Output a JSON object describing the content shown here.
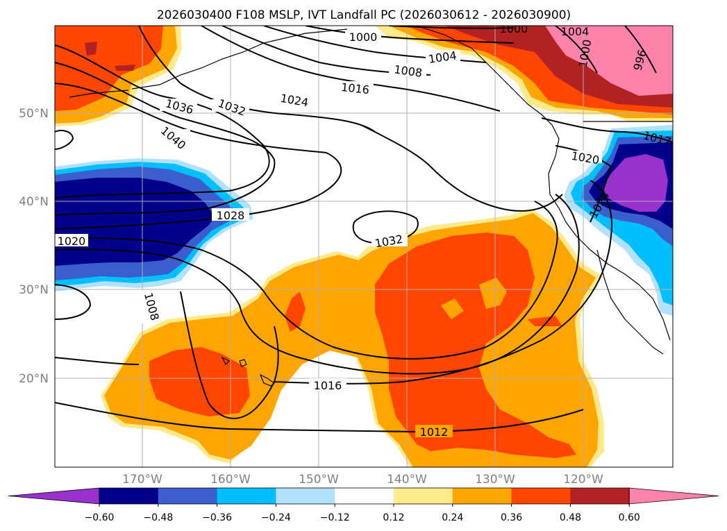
{
  "title": "2026030400 F108 MSLP, IVT Landfall PC (2026030612 - 2026030900)",
  "lon_labels": [
    "170°W",
    "160°W",
    "150°W",
    "140°W",
    "130°W",
    "120°W"
  ],
  "lat_labels": [
    "50°N",
    "40°N",
    "30°N",
    "20°N"
  ],
  "colorbar": {
    "ticks": [
      "−0.60",
      "−0.48",
      "−0.36",
      "−0.24",
      "−0.12",
      "0.12",
      "0.24",
      "0.36",
      "0.48",
      "0.60"
    ],
    "colors": [
      "#9932cc",
      "#00008b",
      "#3a5fcd",
      "#00bfff",
      "#b0e2ff",
      "#ffffff",
      "#ffe98a",
      "#ffa500",
      "#ff4500",
      "#b22222",
      "#ff82ab"
    ]
  },
  "contour_labels": [
    "1000",
    "1000",
    "1004",
    "1000",
    "996",
    "1004",
    "1008",
    "1016",
    "1024",
    "1032",
    "1036",
    "1040",
    "1020",
    "1017",
    "1024",
    "1028",
    "1020",
    "1032",
    "1008",
    "1016",
    "1012"
  ],
  "fill_colors": {
    "orange": "#ffa500",
    "red_orange": "#ff4500",
    "dark_red": "#b22222",
    "pink": "#ff82ab",
    "yellow": "#ffe98a",
    "navy": "#00008b",
    "royal": "#3a5fcd",
    "sky": "#00bfff",
    "light_blue": "#b0e2ff",
    "purple": "#9932cc"
  }
}
